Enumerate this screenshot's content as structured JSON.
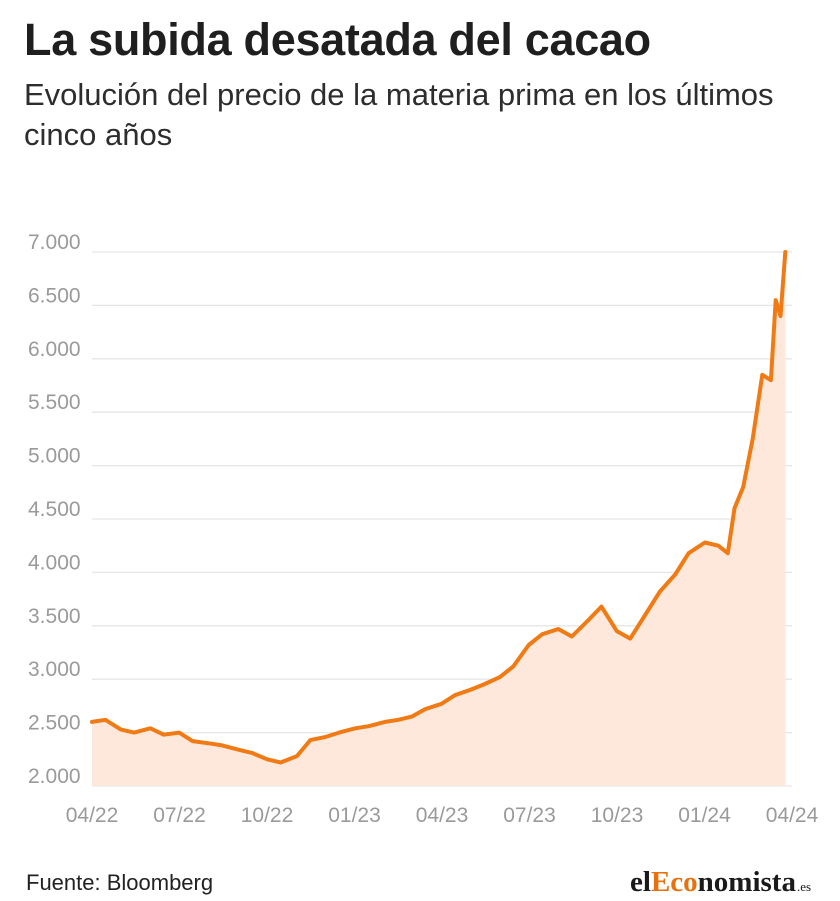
{
  "header": {
    "title": "La subida desatada del cacao",
    "subtitle": "Evolución del precio de la materia prima en los últimos cinco años"
  },
  "footer": {
    "source": "Fuente: Bloomberg",
    "logo_prefix": "el",
    "logo_accent": "Eco",
    "logo_rest": "nomista",
    "logo_suffix": ".es"
  },
  "colors": {
    "line": "#f07a14",
    "area": "#fde8db",
    "grid": "#e6e6e6",
    "tick": "#9a9a9a",
    "logo_accent": "#e8710f"
  },
  "chart_data": {
    "type": "area",
    "title": "La subida desatada del cacao",
    "subtitle": "Evolución del precio de la materia prima en los últimos cinco años",
    "xlabel": "",
    "ylabel": "",
    "x_ticks": [
      "04/22",
      "07/22",
      "10/22",
      "01/23",
      "04/23",
      "07/23",
      "10/23",
      "01/24",
      "04/24"
    ],
    "y_ticks": [
      "2.000",
      "2.500",
      "3.000",
      "3.500",
      "4.000",
      "4.500",
      "5.000",
      "5.500",
      "6.000",
      "6.500",
      "7.000"
    ],
    "ylim": [
      2000,
      7000
    ],
    "xlim": [
      "2022-04-01",
      "2024-04-01"
    ],
    "grid": true,
    "x": [
      "2022-04-01",
      "2022-04-15",
      "2022-05-01",
      "2022-05-15",
      "2022-06-01",
      "2022-06-15",
      "2022-07-01",
      "2022-07-15",
      "2022-08-01",
      "2022-08-15",
      "2022-09-01",
      "2022-09-15",
      "2022-10-01",
      "2022-10-15",
      "2022-11-01",
      "2022-11-15",
      "2022-12-01",
      "2022-12-15",
      "2023-01-01",
      "2023-01-15",
      "2023-02-01",
      "2023-02-15",
      "2023-03-01",
      "2023-03-15",
      "2023-04-01",
      "2023-04-15",
      "2023-05-01",
      "2023-05-15",
      "2023-06-01",
      "2023-06-15",
      "2023-07-01",
      "2023-07-15",
      "2023-08-01",
      "2023-08-15",
      "2023-09-01",
      "2023-09-15",
      "2023-10-01",
      "2023-10-15",
      "2023-11-01",
      "2023-11-15",
      "2023-12-01",
      "2023-12-15",
      "2024-01-01",
      "2024-01-15",
      "2024-01-25",
      "2024-02-01",
      "2024-02-10",
      "2024-02-20",
      "2024-03-01",
      "2024-03-10",
      "2024-03-15",
      "2024-03-20",
      "2024-03-25"
    ],
    "series": [
      {
        "values": [
          2600,
          2620,
          2530,
          2500,
          2540,
          2480,
          2500,
          2420,
          2400,
          2380,
          2340,
          2310,
          2250,
          2220,
          2280,
          2430,
          2460,
          2500,
          2540,
          2560,
          2600,
          2620,
          2650,
          2720,
          2770,
          2850,
          2900,
          2950,
          3020,
          3120,
          3320,
          3420,
          3470,
          3400,
          3550,
          3680,
          3450,
          3380,
          3620,
          3820,
          3980,
          4180,
          4280,
          4250,
          4180,
          4600,
          4800,
          5250,
          5850,
          5800,
          6550,
          6400,
          7000
        ]
      }
    ]
  }
}
